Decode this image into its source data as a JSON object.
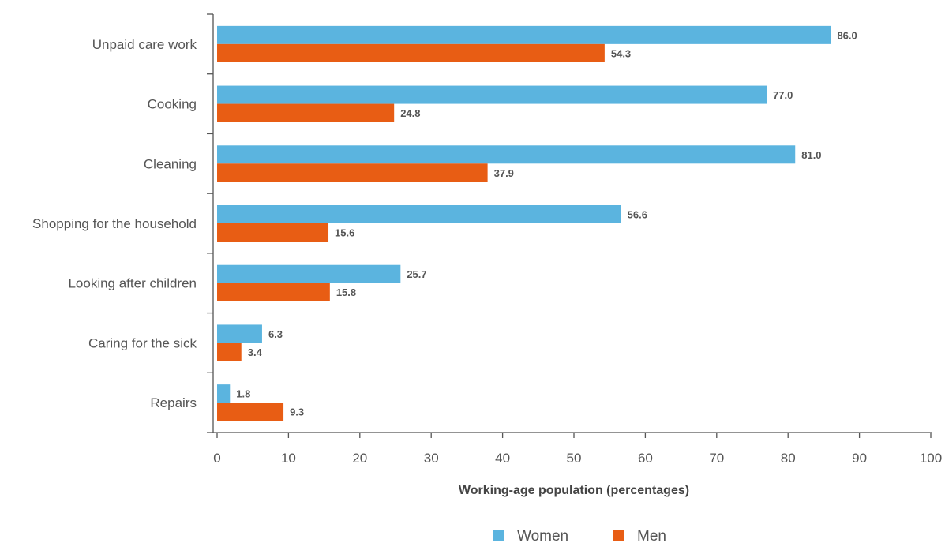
{
  "chart_data": {
    "type": "bar",
    "orientation": "horizontal",
    "categories": [
      "Unpaid care work",
      "Cooking",
      "Cleaning",
      "Shopping for the household",
      "Looking after children",
      "Caring for the sick",
      "Repairs"
    ],
    "series": [
      {
        "name": "Women",
        "color": "#5bb4df",
        "values": [
          86.0,
          77.0,
          81.0,
          56.6,
          25.7,
          6.3,
          1.8
        ]
      },
      {
        "name": "Men",
        "color": "#e85d14",
        "values": [
          54.3,
          24.8,
          37.9,
          15.6,
          15.8,
          3.4,
          9.3
        ]
      }
    ],
    "xlabel": "Working-age population (percentages)",
    "ylabel": "",
    "xlim": [
      0,
      100
    ],
    "xticks": [
      "0",
      "10",
      "20",
      "30",
      "40",
      "50",
      "60",
      "70",
      "80",
      "90",
      "100"
    ],
    "grid": false,
    "legend_position": "bottom-center",
    "value_labels": true
  }
}
